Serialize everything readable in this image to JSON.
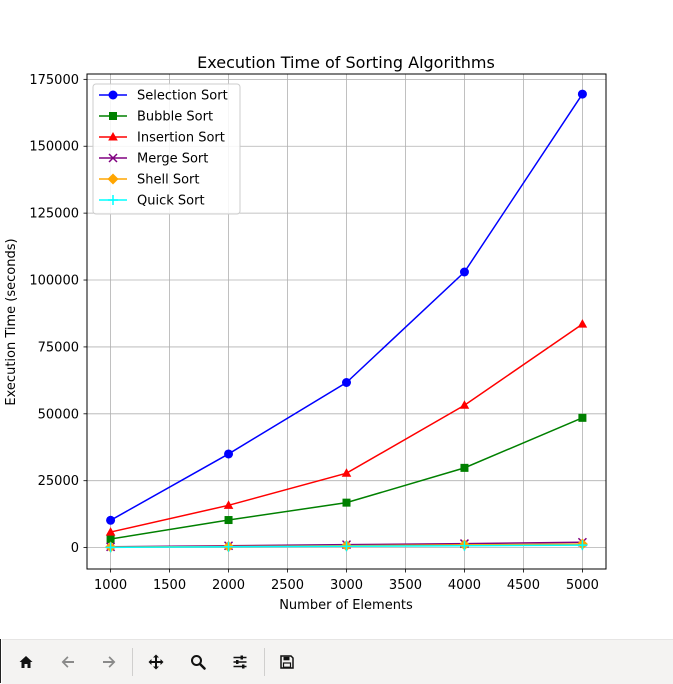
{
  "toolbar": {
    "buttons": [
      {
        "icon": "home-icon"
      },
      {
        "icon": "back-arrow-icon"
      },
      {
        "icon": "forward-arrow-icon"
      },
      {
        "icon": "pan-move-icon"
      },
      {
        "icon": "zoom-magnifier-icon"
      },
      {
        "icon": "configure-subplots-icon"
      },
      {
        "icon": "save-floppy-icon"
      }
    ]
  },
  "chart_data": {
    "type": "line",
    "title": "Execution Time of Sorting Algorithms",
    "xlabel": "Number of Elements",
    "ylabel": "Execution Time (seconds)",
    "x": [
      1000,
      2000,
      3000,
      4000,
      5000
    ],
    "xlim": [
      800,
      5200
    ],
    "ylim": [
      -8000,
      177000
    ],
    "xticks": [
      1000,
      1500,
      2000,
      2500,
      3000,
      3500,
      4000,
      4500,
      5000
    ],
    "yticks": [
      0,
      25000,
      50000,
      75000,
      100000,
      125000,
      150000,
      175000
    ],
    "grid": true,
    "legend_position": "upper left",
    "series": [
      {
        "name": "Selection Sort",
        "color": "#0000ff",
        "marker": "circle",
        "values": [
          10200,
          35000,
          61700,
          103000,
          169500
        ]
      },
      {
        "name": "Bubble Sort",
        "color": "#008000",
        "marker": "square",
        "values": [
          3200,
          10300,
          16800,
          29800,
          48500
        ]
      },
      {
        "name": "Insertion Sort",
        "color": "#ff0000",
        "marker": "triangle",
        "values": [
          5800,
          15800,
          27800,
          53200,
          83500
        ]
      },
      {
        "name": "Merge Sort",
        "color": "#800080",
        "marker": "x",
        "values": [
          300,
          700,
          1100,
          1500,
          2000
        ]
      },
      {
        "name": "Shell Sort",
        "color": "#ffa500",
        "marker": "diamond",
        "values": [
          200,
          400,
          700,
          1000,
          1300
        ]
      },
      {
        "name": "Quick Sort",
        "color": "#00ffff",
        "marker": "plus",
        "values": [
          100,
          300,
          500,
          700,
          900
        ]
      }
    ]
  }
}
